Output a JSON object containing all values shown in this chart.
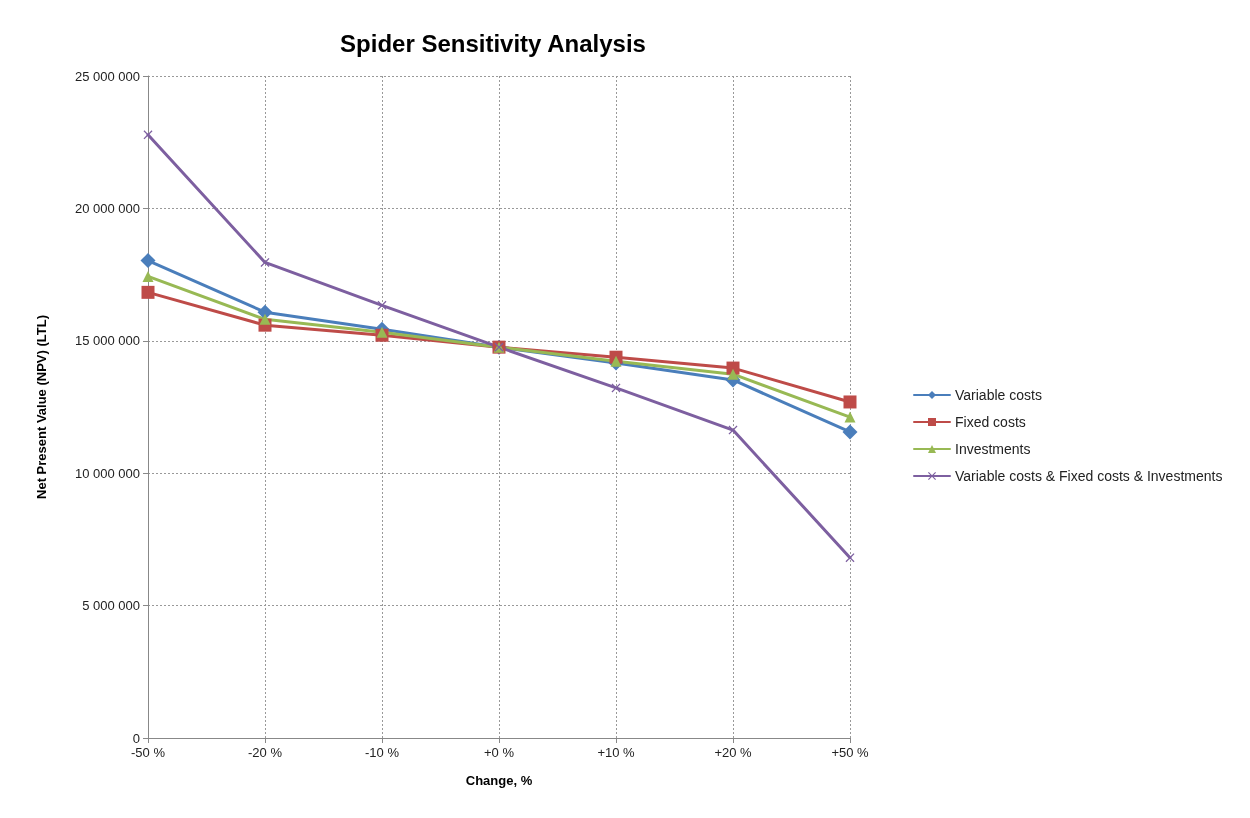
{
  "chart_data": {
    "type": "line",
    "title": "Spider Sensitivity Analysis",
    "xlabel": "Change, %",
    "ylabel": "Net Present Value (NPV) (LTL)",
    "categories": [
      "-50 %",
      "-20 %",
      "-10 %",
      "+0 %",
      "+10 %",
      "+20 %",
      "+50 %"
    ],
    "series": [
      {
        "name": "Variable costs",
        "color": "#4a7ebb",
        "marker": "diamond",
        "values": [
          18030000,
          16080000,
          15440000,
          14760000,
          14160000,
          13520000,
          11560000
        ]
      },
      {
        "name": "Fixed costs",
        "color": "#be4b48",
        "marker": "square",
        "values": [
          16830000,
          15590000,
          15210000,
          14760000,
          14380000,
          13970000,
          12690000
        ]
      },
      {
        "name": "Investments",
        "color": "#98b954",
        "marker": "triangle",
        "values": [
          17430000,
          15810000,
          15320000,
          14760000,
          14230000,
          13740000,
          12120000
        ]
      },
      {
        "name": "Variable costs & Fixed costs & Investments",
        "color": "#7d5fa0",
        "marker": "cross",
        "values": [
          22780000,
          17960000,
          16340000,
          14760000,
          13220000,
          11630000,
          6810000
        ]
      }
    ],
    "ylim": [
      0,
      25000000
    ],
    "yticks": [
      {
        "value": 0,
        "label": "0"
      },
      {
        "value": 5000000,
        "label": "5 000 000"
      },
      {
        "value": 10000000,
        "label": "10 000 000"
      },
      {
        "value": 15000000,
        "label": "15 000 000"
      },
      {
        "value": 20000000,
        "label": "20 000 000"
      },
      {
        "value": 25000000,
        "label": "25 000 000"
      }
    ],
    "grid": true,
    "legend": "right",
    "line_style": "solid"
  }
}
